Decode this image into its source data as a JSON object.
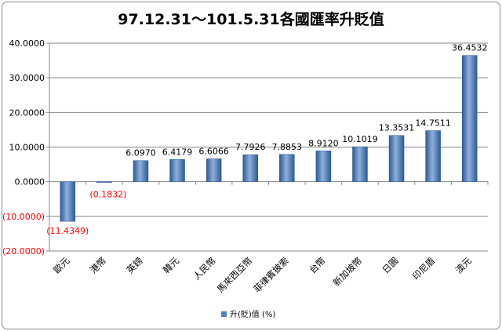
{
  "chart_data": {
    "type": "bar",
    "title": "97.12.31～101.5.31各國匯率升貶值",
    "categories": [
      "歐元",
      "港幣",
      "英鎊",
      "韓元",
      "人民幣",
      "馬來西亞幣",
      "菲律賓披索",
      "台幣",
      "新加坡幣",
      "日圓",
      "印尼盾",
      "澳元"
    ],
    "series": [
      {
        "name": "升(貶)值 (%)",
        "values": [
          -11.4349,
          -0.1832,
          6.097,
          6.4179,
          6.6066,
          7.7926,
          7.8853,
          8.912,
          10.1019,
          13.3531,
          14.7511,
          36.4532
        ],
        "data_labels": [
          "(11.4349)",
          "(0.1832)",
          "6.0970",
          "6.4179",
          "6.6066",
          "7.7926",
          "7.8853",
          "8.9120",
          "10.1019",
          "13.3531",
          "14.7511",
          "36.4532"
        ]
      }
    ],
    "ylim": [
      -20,
      40
    ],
    "yticks": [
      40,
      30,
      20,
      10,
      0,
      -10,
      -20
    ],
    "ytick_labels": [
      "40.0000",
      "30.0000",
      "20.0000",
      "10.0000",
      "0.0000",
      "(10.0000)",
      "(20.0000)"
    ],
    "grid": true,
    "legend_position": "bottom",
    "colors": {
      "bar": "#4f81bd",
      "bar_dark": "#2c5a96",
      "bar_light": "#8fb0dc",
      "negative_text": "#ff0000",
      "positive_text": "#000000",
      "grid": "#878787"
    }
  }
}
